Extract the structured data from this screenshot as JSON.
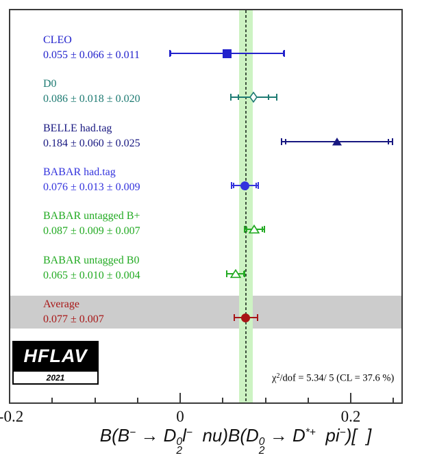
{
  "logo": {
    "name": "HFLAV",
    "year": "2021"
  },
  "chart_data": {
    "type": "scatter",
    "orientation": "horizontal-measurement-comparison",
    "xlim": [
      -0.2,
      0.2617
    ],
    "grid": false,
    "frame_color": "#3a3a3a",
    "xticks": [
      {
        "value": -0.2,
        "label": "-0.2",
        "major": true
      },
      {
        "value": -0.15,
        "label": "",
        "major": false
      },
      {
        "value": -0.1,
        "label": "",
        "major": false
      },
      {
        "value": -0.05,
        "label": "",
        "major": false
      },
      {
        "value": 0,
        "label": "0",
        "major": true
      },
      {
        "value": 0.05,
        "label": "",
        "major": false
      },
      {
        "value": 0.1,
        "label": "",
        "major": false
      },
      {
        "value": 0.15,
        "label": "",
        "major": false
      },
      {
        "value": 0.2,
        "label": "0.2",
        "major": true
      },
      {
        "value": 0.25,
        "label": "",
        "major": false
      }
    ],
    "points": [
      {
        "label": "CLEO",
        "value_text": "0.055 ± 0.066 ± 0.011",
        "value": 0.055,
        "stat": 0.066,
        "syst": 0.011,
        "marker": "square-filled",
        "color": "#2222cc"
      },
      {
        "label": "D0",
        "value_text": "0.086 ± 0.018 ± 0.020",
        "value": 0.086,
        "stat": 0.018,
        "syst": 0.02,
        "marker": "diamond-open",
        "color": "#1d7a72"
      },
      {
        "label": "BELLE had.tag",
        "value_text": "0.184 ± 0.060 ± 0.025",
        "value": 0.184,
        "stat": 0.06,
        "syst": 0.025,
        "marker": "triangle-filled",
        "color": "#171780"
      },
      {
        "label": "BABAR had.tag",
        "value_text": "0.076 ± 0.013 ± 0.009",
        "value": 0.076,
        "stat": 0.013,
        "syst": 0.009,
        "marker": "circle-filled",
        "color": "#3333dd"
      },
      {
        "label": "BABAR untagged B+",
        "value_text": "0.087 ± 0.009 ± 0.007",
        "value": 0.087,
        "stat": 0.009,
        "syst": 0.007,
        "marker": "triangle-open",
        "color": "#22aa22"
      },
      {
        "label": "BABAR untagged B0",
        "value_text": "0.065 ± 0.010 ± 0.004",
        "value": 0.065,
        "stat": 0.01,
        "syst": 0.004,
        "marker": "triangle-open",
        "color": "#22aa22"
      }
    ],
    "average": {
      "label": "Average",
      "value_text": "0.077 ± 0.007",
      "value": 0.077,
      "error": 0.007,
      "bar_half_display": 0.0135,
      "marker": "circle-filled",
      "color": "#a81616",
      "band_color": "#cccccc"
    },
    "average_band": {
      "center": 0.077,
      "half_width": 0.007,
      "fill": "#cdf3c3",
      "line_color": "#3d513d"
    },
    "chi2": {
      "chi": "χ",
      "sup": "2",
      "rest": "/dof = 5.34/ 5 (CL = 37.6 %)"
    },
    "xlabel_tokens": [
      {
        "t": "n",
        "v": "B(B"
      },
      {
        "t": "sup",
        "v": "−"
      },
      {
        "t": "n",
        "v": " → D"
      },
      {
        "t": "stack",
        "up": "0",
        "down": "2"
      },
      {
        "t": "n",
        "v": "l"
      },
      {
        "t": "sup",
        "v": "−"
      },
      {
        "t": "n",
        "v": "  nu)B(D"
      },
      {
        "t": "stack",
        "up": "0",
        "down": "2"
      },
      {
        "t": "n",
        "v": " → D"
      },
      {
        "t": "sup",
        "v": "*+"
      },
      {
        "t": "n",
        "v": "  pi"
      },
      {
        "t": "sup",
        "v": "−"
      },
      {
        "t": "n",
        "v": ")[  ]"
      }
    ]
  }
}
